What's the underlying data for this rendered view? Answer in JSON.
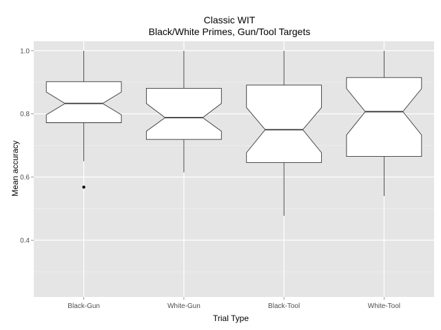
{
  "chart_data": {
    "type": "boxplot",
    "title": "Classic WIT",
    "subtitle": "Black/White Primes, Gun/Tool Targets",
    "xlabel": "Trial Type",
    "ylabel": "Mean accuracy",
    "ylim": [
      0.22,
      1.03
    ],
    "yticks": [
      0.4,
      0.6,
      0.8,
      1.0
    ],
    "ytick_labels": [
      "0.4",
      "0.6",
      "0.8",
      "1.0"
    ],
    "categories": [
      "Black-Gun",
      "White-Gun",
      "Black-Tool",
      "White-Tool"
    ],
    "boxes": [
      {
        "category": "Black-Gun",
        "whisker_low": 0.65,
        "q1": 0.772,
        "median": 0.833,
        "q3": 0.902,
        "whisker_high": 1.0,
        "notch_low": 0.797,
        "notch_high": 0.869,
        "outliers": [
          0.568
        ]
      },
      {
        "category": "White-Gun",
        "whisker_low": 0.615,
        "q1": 0.719,
        "median": 0.788,
        "q3": 0.881,
        "whisker_high": 1.0,
        "notch_low": 0.745,
        "notch_high": 0.833,
        "outliers": []
      },
      {
        "category": "Black-Tool",
        "whisker_low": 0.477,
        "q1": 0.646,
        "median": 0.75,
        "q3": 0.891,
        "whisker_high": 1.0,
        "notch_low": 0.677,
        "notch_high": 0.82,
        "outliers": []
      },
      {
        "category": "White-Tool",
        "whisker_low": 0.54,
        "q1": 0.665,
        "median": 0.807,
        "q3": 0.915,
        "whisker_high": 1.0,
        "notch_low": 0.733,
        "notch_high": 0.88,
        "outliers": []
      }
    ],
    "colors": {
      "panel_background": "#e5e5e5",
      "grid_major": "#ffffff",
      "grid_minor": "#f2f2f2",
      "box_fill": "#ffffff",
      "box_stroke": "#333333",
      "outlier": "#000000"
    }
  }
}
